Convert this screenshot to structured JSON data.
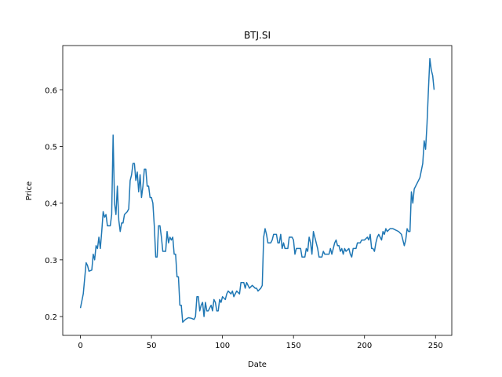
{
  "chart_data": {
    "type": "line",
    "title": "BTJ.SI",
    "x_label": "Date",
    "y_label": "Price",
    "color": "#1f77b4",
    "x": [
      0,
      2,
      4,
      5,
      6,
      8,
      9,
      10,
      11,
      12,
      13,
      14,
      15,
      16,
      17,
      18,
      19,
      21,
      22,
      23,
      24,
      25,
      26,
      27,
      28,
      29,
      30,
      31,
      33,
      34,
      35,
      36,
      37,
      38,
      39,
      40,
      41,
      42,
      43,
      44,
      45,
      46,
      47,
      48,
      49,
      50,
      51,
      52,
      53,
      54,
      55,
      56,
      57,
      58,
      60,
      61,
      62,
      63,
      64,
      65,
      66,
      67,
      68,
      69,
      70,
      71,
      72,
      74,
      76,
      78,
      80,
      81,
      82,
      83,
      84,
      85,
      86,
      87,
      88,
      89,
      90,
      92,
      93,
      94,
      95,
      96,
      97,
      98,
      99,
      100,
      102,
      103,
      104,
      106,
      107,
      108,
      110,
      112,
      113,
      115,
      116,
      117,
      119,
      121,
      123,
      124,
      125,
      127,
      128,
      129,
      130,
      131,
      132,
      134,
      135,
      136,
      138,
      139,
      140,
      141,
      142,
      143,
      144,
      146,
      147,
      149,
      150,
      151,
      152,
      153,
      155,
      156,
      158,
      159,
      160,
      161,
      162,
      163,
      164,
      165,
      167,
      168,
      170,
      171,
      172,
      173,
      175,
      176,
      177,
      178,
      179,
      180,
      181,
      182,
      183,
      184,
      185,
      186,
      187,
      189,
      190,
      191,
      192,
      194,
      195,
      197,
      198,
      200,
      202,
      203,
      204,
      205,
      206,
      207,
      208,
      209,
      210,
      212,
      213,
      214,
      215,
      216,
      218,
      220,
      224,
      226,
      227,
      228,
      229,
      230,
      231,
      232,
      233,
      234,
      235,
      237,
      239,
      241,
      242,
      243,
      244,
      245,
      246,
      247,
      248,
      249
    ],
    "values": [
      0.215,
      0.24,
      0.295,
      0.29,
      0.28,
      0.282,
      0.31,
      0.3,
      0.325,
      0.32,
      0.34,
      0.32,
      0.35,
      0.385,
      0.375,
      0.38,
      0.36,
      0.36,
      0.38,
      0.52,
      0.4,
      0.38,
      0.43,
      0.37,
      0.35,
      0.365,
      0.365,
      0.38,
      0.385,
      0.39,
      0.44,
      0.45,
      0.47,
      0.47,
      0.44,
      0.455,
      0.42,
      0.45,
      0.41,
      0.43,
      0.46,
      0.46,
      0.43,
      0.43,
      0.41,
      0.41,
      0.4,
      0.36,
      0.305,
      0.305,
      0.36,
      0.36,
      0.34,
      0.315,
      0.315,
      0.35,
      0.33,
      0.34,
      0.335,
      0.34,
      0.31,
      0.31,
      0.27,
      0.27,
      0.22,
      0.22,
      0.19,
      0.195,
      0.198,
      0.197,
      0.195,
      0.2,
      0.235,
      0.235,
      0.21,
      0.22,
      0.225,
      0.2,
      0.225,
      0.21,
      0.21,
      0.22,
      0.21,
      0.23,
      0.225,
      0.21,
      0.21,
      0.23,
      0.225,
      0.235,
      0.23,
      0.24,
      0.245,
      0.24,
      0.245,
      0.235,
      0.245,
      0.24,
      0.26,
      0.26,
      0.25,
      0.26,
      0.25,
      0.255,
      0.25,
      0.25,
      0.245,
      0.25,
      0.255,
      0.34,
      0.355,
      0.345,
      0.33,
      0.33,
      0.335,
      0.345,
      0.345,
      0.33,
      0.33,
      0.345,
      0.32,
      0.33,
      0.32,
      0.32,
      0.34,
      0.34,
      0.335,
      0.31,
      0.32,
      0.32,
      0.32,
      0.305,
      0.305,
      0.32,
      0.315,
      0.34,
      0.33,
      0.31,
      0.35,
      0.34,
      0.32,
      0.305,
      0.305,
      0.315,
      0.31,
      0.31,
      0.31,
      0.32,
      0.31,
      0.32,
      0.33,
      0.335,
      0.325,
      0.325,
      0.315,
      0.32,
      0.31,
      0.32,
      0.315,
      0.32,
      0.31,
      0.305,
      0.32,
      0.32,
      0.33,
      0.33,
      0.335,
      0.335,
      0.34,
      0.335,
      0.345,
      0.32,
      0.32,
      0.315,
      0.33,
      0.34,
      0.345,
      0.335,
      0.35,
      0.345,
      0.355,
      0.35,
      0.355,
      0.355,
      0.35,
      0.345,
      0.335,
      0.325,
      0.335,
      0.355,
      0.35,
      0.35,
      0.42,
      0.4,
      0.425,
      0.435,
      0.445,
      0.47,
      0.51,
      0.495,
      0.54,
      0.6,
      0.655,
      0.635,
      0.625,
      0.6
    ],
    "xlim": [
      -12.45,
      261.45
    ],
    "ylim": [
      0.1668,
      0.678
    ],
    "xticks": [
      0,
      50,
      100,
      150,
      200,
      250
    ],
    "yticks": [
      0.2,
      0.3,
      0.4,
      0.5,
      0.6
    ]
  }
}
